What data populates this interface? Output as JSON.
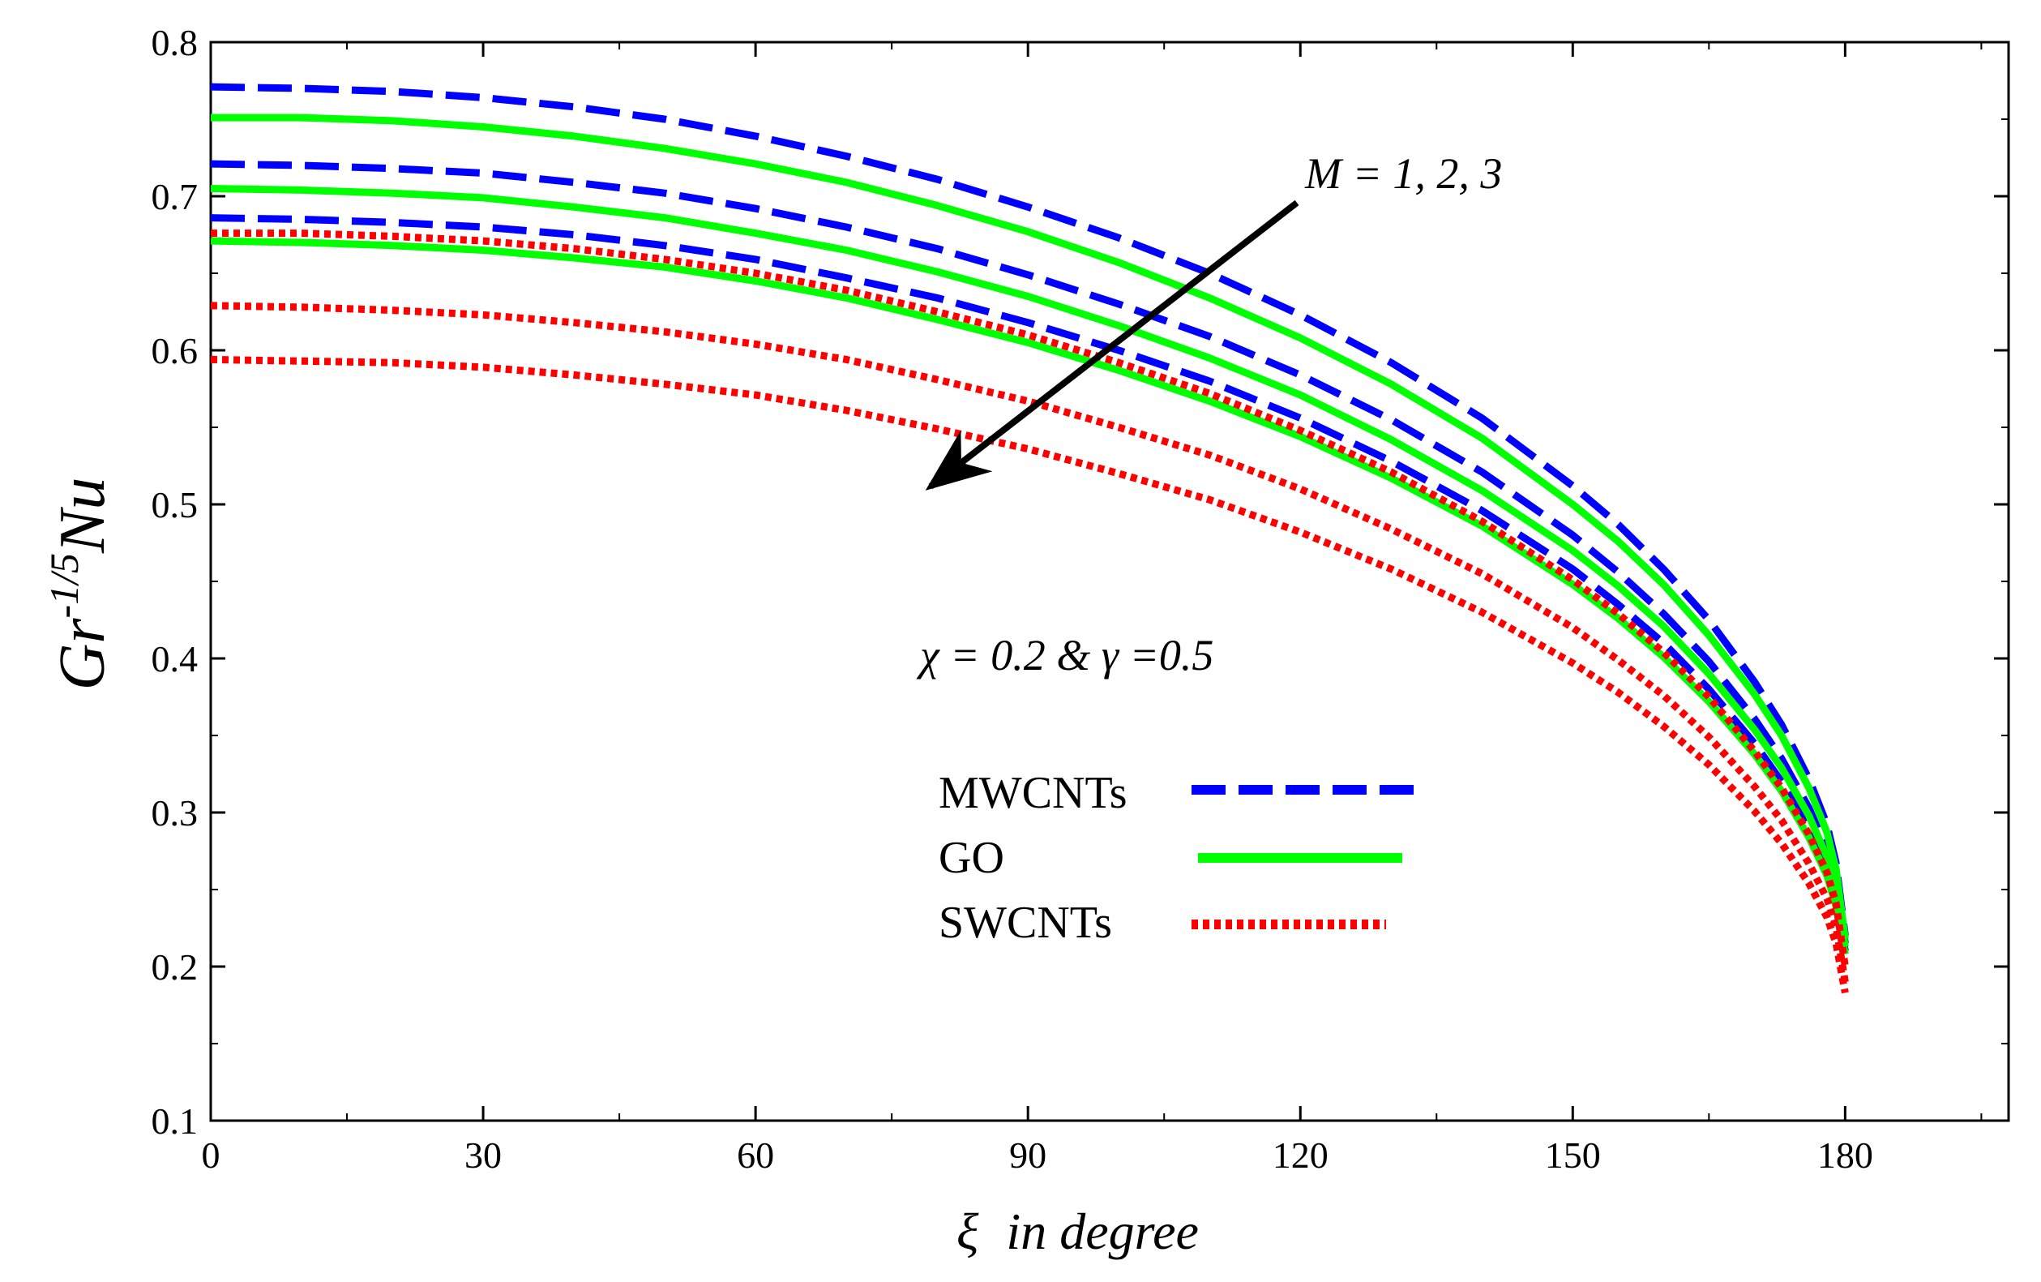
{
  "chart_data": {
    "type": "line",
    "title": "",
    "xlabel_symbol": "ξ",
    "xlabel_text": "in degree",
    "ylabel_base": "Gr",
    "ylabel_exp": "-1/5",
    "ylabel_tail": "Nu",
    "xlim": [
      0,
      198
    ],
    "ylim": [
      0.1,
      0.8
    ],
    "xticks": [
      0,
      30,
      60,
      90,
      120,
      150,
      180
    ],
    "xtick_labels": [
      "0",
      "30",
      "60",
      "90",
      "120",
      "150",
      "180"
    ],
    "yticks": [
      0.1,
      0.2,
      0.3,
      0.4,
      0.5,
      0.6,
      0.7,
      0.8
    ],
    "ytick_labels": [
      "0.1",
      "0.2",
      "0.3",
      "0.4",
      "0.5",
      "0.6",
      "0.7",
      "0.8"
    ],
    "grid": false,
    "annotations": {
      "arrow_label": "M = 1, 2, 3",
      "params": "χ = 0.2 & γ =0.5"
    },
    "x": [
      0,
      10,
      20,
      30,
      40,
      50,
      60,
      70,
      80,
      90,
      100,
      110,
      120,
      130,
      140,
      150,
      155,
      160,
      165,
      170,
      173,
      176,
      178,
      179,
      180
    ],
    "series": [
      {
        "name": "MWCNTs",
        "group": "MWCNTs",
        "M": 1,
        "style": "dashed",
        "color": "#0000ff",
        "values": [
          0.771,
          0.77,
          0.768,
          0.764,
          0.758,
          0.75,
          0.739,
          0.726,
          0.711,
          0.693,
          0.673,
          0.65,
          0.623,
          0.592,
          0.556,
          0.512,
          0.487,
          0.458,
          0.425,
          0.385,
          0.357,
          0.322,
          0.292,
          0.267,
          0.22
        ]
      },
      {
        "name": "MWCNTs",
        "group": "MWCNTs",
        "M": 2,
        "style": "dashed",
        "color": "#0000ff",
        "values": [
          0.721,
          0.72,
          0.718,
          0.715,
          0.709,
          0.702,
          0.692,
          0.68,
          0.666,
          0.649,
          0.63,
          0.609,
          0.584,
          0.555,
          0.521,
          0.48,
          0.456,
          0.429,
          0.398,
          0.361,
          0.335,
          0.303,
          0.276,
          0.254,
          0.215
        ]
      },
      {
        "name": "MWCNTs",
        "group": "MWCNTs",
        "M": 3,
        "style": "dashed",
        "color": "#0000ff",
        "values": [
          0.686,
          0.685,
          0.683,
          0.68,
          0.675,
          0.668,
          0.659,
          0.647,
          0.634,
          0.618,
          0.6,
          0.58,
          0.556,
          0.528,
          0.496,
          0.458,
          0.435,
          0.41,
          0.38,
          0.345,
          0.32,
          0.29,
          0.264,
          0.244,
          0.21
        ]
      },
      {
        "name": "GO",
        "group": "GO",
        "M": 1,
        "style": "solid",
        "color": "#00ff00",
        "values": [
          0.751,
          0.751,
          0.749,
          0.745,
          0.739,
          0.731,
          0.721,
          0.709,
          0.694,
          0.677,
          0.657,
          0.634,
          0.608,
          0.578,
          0.543,
          0.5,
          0.476,
          0.448,
          0.415,
          0.377,
          0.35,
          0.316,
          0.287,
          0.263,
          0.218
        ]
      },
      {
        "name": "GO",
        "group": "GO",
        "M": 2,
        "style": "solid",
        "color": "#00ff00",
        "values": [
          0.705,
          0.704,
          0.702,
          0.699,
          0.693,
          0.686,
          0.676,
          0.665,
          0.651,
          0.635,
          0.616,
          0.595,
          0.571,
          0.542,
          0.509,
          0.47,
          0.447,
          0.421,
          0.39,
          0.354,
          0.329,
          0.298,
          0.271,
          0.25,
          0.213
        ]
      },
      {
        "name": "GO",
        "group": "GO",
        "M": 3,
        "style": "solid",
        "color": "#00ff00",
        "values": [
          0.671,
          0.67,
          0.668,
          0.665,
          0.66,
          0.654,
          0.645,
          0.634,
          0.62,
          0.605,
          0.587,
          0.567,
          0.544,
          0.517,
          0.486,
          0.448,
          0.426,
          0.401,
          0.372,
          0.338,
          0.314,
          0.284,
          0.259,
          0.239,
          0.208
        ]
      },
      {
        "name": "SWCNTs",
        "group": "SWCNTs",
        "M": 1,
        "style": "dotted",
        "color": "#ff0000",
        "values": [
          0.676,
          0.676,
          0.674,
          0.671,
          0.666,
          0.659,
          0.65,
          0.639,
          0.625,
          0.61,
          0.592,
          0.572,
          0.548,
          0.521,
          0.489,
          0.451,
          0.429,
          0.404,
          0.375,
          0.34,
          0.316,
          0.286,
          0.261,
          0.241,
          0.2
        ]
      },
      {
        "name": "SWCNTs",
        "group": "SWCNTs",
        "M": 2,
        "style": "dotted",
        "color": "#ff0000",
        "values": [
          0.629,
          0.628,
          0.626,
          0.623,
          0.618,
          0.612,
          0.604,
          0.594,
          0.581,
          0.567,
          0.55,
          0.532,
          0.51,
          0.484,
          0.455,
          0.42,
          0.399,
          0.376,
          0.349,
          0.317,
          0.295,
          0.267,
          0.244,
          0.226,
          0.19
        ]
      },
      {
        "name": "SWCNTs",
        "group": "SWCNTs",
        "M": 3,
        "style": "dotted",
        "color": "#ff0000",
        "values": [
          0.594,
          0.593,
          0.592,
          0.589,
          0.584,
          0.578,
          0.571,
          0.561,
          0.549,
          0.536,
          0.52,
          0.503,
          0.482,
          0.458,
          0.43,
          0.397,
          0.378,
          0.356,
          0.331,
          0.301,
          0.28,
          0.254,
          0.232,
          0.215,
          0.183
        ]
      }
    ],
    "legend": [
      {
        "label": "MWCNTs",
        "style": "dashed",
        "color": "#0000ff"
      },
      {
        "label": "GO",
        "style": "solid",
        "color": "#00ff00"
      },
      {
        "label": "SWCNTs",
        "style": "dotted",
        "color": "#ff0000"
      }
    ],
    "legend_position": "center-bottom"
  }
}
